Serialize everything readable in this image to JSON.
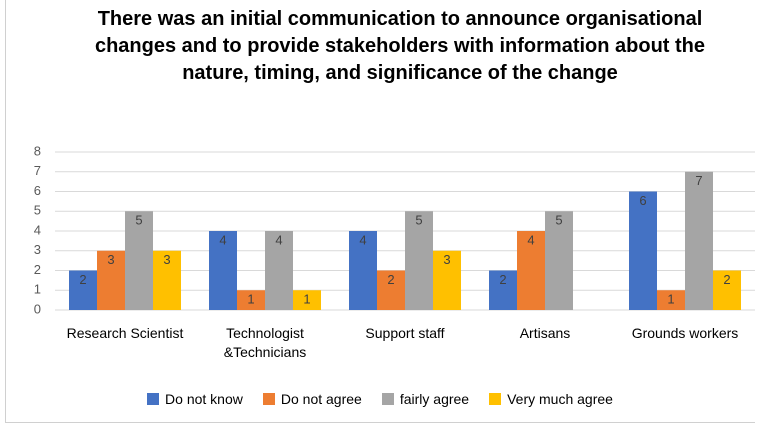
{
  "chart_data": {
    "type": "bar",
    "title": "There was an initial communication to announce organisational changes and to provide stakeholders with information about the nature, timing, and significance of the change",
    "categories": [
      "Research Scientist",
      "Technologist &Technicians",
      "Support staff",
      "Artisans",
      "Grounds workers"
    ],
    "series": [
      {
        "name": "Do not know",
        "color": "#4472c4",
        "values": [
          2,
          4,
          4,
          2,
          6
        ]
      },
      {
        "name": "Do not agree",
        "color": "#ed7d31",
        "values": [
          3,
          1,
          2,
          4,
          1
        ]
      },
      {
        "name": "fairly agree",
        "color": "#a5a5a5",
        "values": [
          5,
          4,
          5,
          5,
          7
        ]
      },
      {
        "name": "Very much agree",
        "color": "#ffc000",
        "values": [
          3,
          1,
          3,
          null,
          2
        ]
      }
    ],
    "ylim": [
      0,
      8
    ],
    "yticks": [
      0,
      1,
      2,
      3,
      4,
      5,
      6,
      7,
      8
    ],
    "grid": true,
    "legend": "bottom"
  }
}
